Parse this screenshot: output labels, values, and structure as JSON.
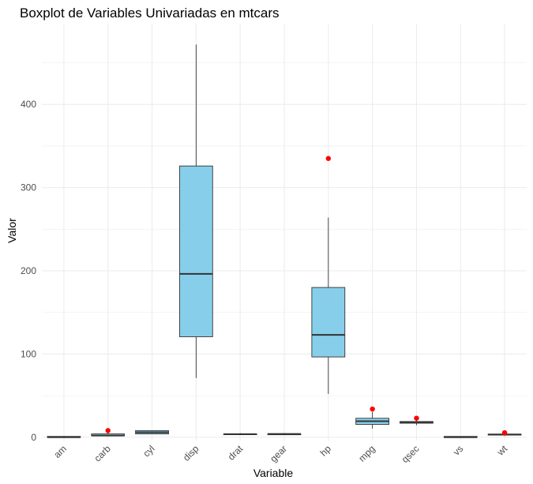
{
  "chart_data": {
    "type": "boxplot",
    "title": "Boxplot de Variables Univariadas en mtcars",
    "xlabel": "Variable",
    "ylabel": "Valor",
    "ylim": [
      -4,
      497
    ],
    "yticks": [
      0,
      100,
      200,
      300,
      400
    ],
    "grid": true,
    "box_fill": "#87CEEB",
    "box_stroke": "#333333",
    "outlier_color": "#FF0000",
    "categories": [
      "am",
      "carb",
      "cyl",
      "disp",
      "drat",
      "gear",
      "hp",
      "mpg",
      "qsec",
      "vs",
      "wt"
    ],
    "boxes": [
      {
        "category": "am",
        "min": 0,
        "q1": 0,
        "median": 0,
        "q3": 1,
        "max": 1,
        "outliers": []
      },
      {
        "category": "carb",
        "min": 1,
        "q1": 2,
        "median": 2,
        "q3": 4,
        "max": 6,
        "outliers": [
          8
        ]
      },
      {
        "category": "cyl",
        "min": 4,
        "q1": 4,
        "median": 6,
        "q3": 8,
        "max": 8,
        "outliers": []
      },
      {
        "category": "disp",
        "min": 71.1,
        "q1": 120.8,
        "median": 196.3,
        "q3": 326,
        "max": 472,
        "outliers": []
      },
      {
        "category": "drat",
        "min": 2.76,
        "q1": 3.08,
        "median": 3.695,
        "q3": 3.92,
        "max": 4.93,
        "outliers": []
      },
      {
        "category": "gear",
        "min": 3,
        "q1": 3,
        "median": 4,
        "q3": 4,
        "max": 5,
        "outliers": []
      },
      {
        "category": "hp",
        "min": 52,
        "q1": 96.5,
        "median": 123,
        "q3": 180,
        "max": 264,
        "outliers": [
          335
        ]
      },
      {
        "category": "mpg",
        "min": 10.4,
        "q1": 15.43,
        "median": 19.2,
        "q3": 22.8,
        "max": 30.4,
        "outliers": [
          33.9
        ]
      },
      {
        "category": "qsec",
        "min": 14.5,
        "q1": 16.89,
        "median": 17.71,
        "q3": 18.9,
        "max": 20.22,
        "outliers": [
          22.9
        ]
      },
      {
        "category": "vs",
        "min": 0,
        "q1": 0,
        "median": 0,
        "q3": 1,
        "max": 1,
        "outliers": []
      },
      {
        "category": "wt",
        "min": 1.51,
        "q1": 2.58,
        "median": 3.325,
        "q3": 3.61,
        "max": 5.25,
        "outliers": [
          5.42
        ]
      }
    ]
  }
}
